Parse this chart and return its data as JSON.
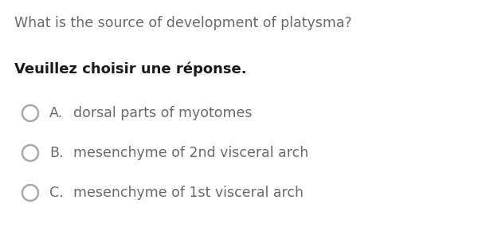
{
  "background_color": "#ffffff",
  "question": "What is the source of development of platysma?",
  "question_fontsize": 12.5,
  "question_color": "#6a6a6a",
  "instruction": "Veuillez choisir une réponse.",
  "instruction_fontsize": 13,
  "instruction_color": "#1a1a1a",
  "options": [
    {
      "label": "A.",
      "text": "dorsal parts of myotomes"
    },
    {
      "label": "B.",
      "text": "mesenchyme of 2nd visceral arch"
    },
    {
      "label": "C.",
      "text": "mesenchyme of 1st visceral arch"
    }
  ],
  "option_fontsize": 12.5,
  "option_color": "#6a6a6a",
  "circle_color": "#aaaaaa",
  "fig_width": 6.0,
  "fig_height": 3.1,
  "dpi": 100
}
